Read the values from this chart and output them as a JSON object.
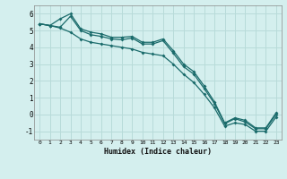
{
  "xlabel": "Humidex (Indice chaleur)",
  "ylabel": "",
  "background_color": "#d4efee",
  "grid_color": "#b8dbd9",
  "line_color": "#1a6b6b",
  "x": [
    0,
    1,
    2,
    3,
    4,
    5,
    6,
    7,
    8,
    9,
    10,
    11,
    12,
    13,
    14,
    15,
    16,
    17,
    18,
    19,
    20,
    21,
    22,
    23
  ],
  "line1": [
    5.4,
    5.3,
    5.7,
    6.0,
    5.1,
    4.9,
    4.8,
    4.6,
    4.6,
    4.65,
    4.3,
    4.3,
    4.5,
    3.8,
    3.0,
    2.55,
    1.7,
    0.75,
    -0.5,
    -0.2,
    -0.35,
    -0.8,
    -0.8,
    0.1
  ],
  "line2": [
    5.4,
    5.3,
    5.2,
    5.85,
    5.0,
    4.75,
    4.65,
    4.5,
    4.45,
    4.55,
    4.2,
    4.2,
    4.4,
    3.65,
    2.85,
    2.4,
    1.55,
    0.65,
    -0.55,
    -0.25,
    -0.45,
    -0.85,
    -0.85,
    0.0
  ],
  "line3": [
    5.4,
    5.3,
    5.15,
    4.9,
    4.5,
    4.3,
    4.2,
    4.1,
    4.0,
    3.9,
    3.7,
    3.6,
    3.5,
    3.0,
    2.4,
    1.9,
    1.2,
    0.4,
    -0.7,
    -0.5,
    -0.6,
    -1.0,
    -1.0,
    -0.15
  ],
  "ylim": [
    -1.5,
    6.5
  ],
  "xlim": [
    -0.5,
    23.5
  ],
  "yticks": [
    -1,
    0,
    1,
    2,
    3,
    4,
    5,
    6
  ],
  "xticks": [
    0,
    1,
    2,
    3,
    4,
    5,
    6,
    7,
    8,
    9,
    10,
    11,
    12,
    13,
    14,
    15,
    16,
    17,
    18,
    19,
    20,
    21,
    22,
    23
  ]
}
